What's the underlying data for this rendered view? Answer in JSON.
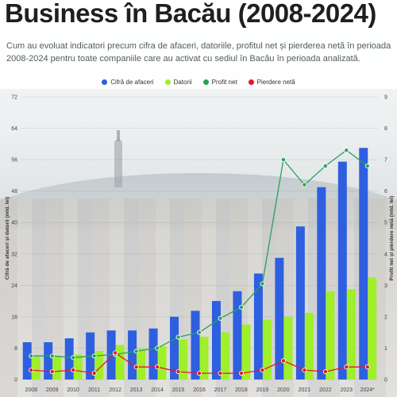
{
  "header": {
    "title": "Business în Bacău (2008-2024)",
    "subtitle": "Cum au evoluat indicatori precum cifra de afaceri, datoriile, profitul net și pierderea netă în perioada 2008-2024 pentru toate companiile care au activat cu sediul în Bacău în perioada analizată."
  },
  "colors": {
    "cifra_de_afaceri": "#2d5fe0",
    "datorii": "#9fef2a",
    "profit_net": "#2aa05a",
    "pierdere_neta": "#e31b23"
  },
  "chart_data": {
    "type": "bar",
    "title": "Business în Bacău (2008-2024)",
    "categories": [
      "2008",
      "2009",
      "2010",
      "2011",
      "2012",
      "2013",
      "2014",
      "2015",
      "2016",
      "2017",
      "2018",
      "2019",
      "2020",
      "2021",
      "2022",
      "2023",
      "2024*"
    ],
    "ylabel": "Cifră de afaceri și datorii (mld. lei)",
    "y2label": "Profit net și pierdere netă (mld. lei)",
    "ylim": [
      0,
      72
    ],
    "yticks": [
      0,
      8,
      16,
      24,
      32,
      40,
      48,
      56,
      64,
      72
    ],
    "y2lim": [
      0,
      9
    ],
    "y2ticks": [
      0,
      1,
      2,
      3,
      4,
      5,
      6,
      7,
      8,
      9
    ],
    "grid": true,
    "legend_position": "top-center",
    "series": [
      {
        "name": "Cifră de afaceri",
        "type": "bar",
        "axis": "left",
        "values": [
          9.5,
          9.5,
          10.5,
          12,
          12.5,
          12.5,
          13,
          16,
          17.5,
          20,
          22.5,
          27,
          31,
          39,
          49,
          55.5,
          59
        ]
      },
      {
        "name": "Datorii",
        "type": "bar",
        "axis": "left",
        "values": [
          5.8,
          6,
          6.4,
          7.3,
          8.8,
          7.9,
          8.5,
          10.2,
          10.9,
          12,
          14,
          15.2,
          16,
          17,
          22.5,
          23,
          26
        ]
      },
      {
        "name": "Profit net",
        "type": "line",
        "axis": "right",
        "values": [
          0.75,
          0.75,
          0.7,
          0.75,
          0.8,
          0.9,
          1.0,
          1.35,
          1.5,
          1.95,
          2.3,
          3.05,
          7.0,
          6.2,
          6.8,
          7.3,
          6.8
        ]
      },
      {
        "name": "Pierdere netă",
        "type": "line",
        "axis": "right",
        "values": [
          0.3,
          0.25,
          0.3,
          0.2,
          0.85,
          0.4,
          0.4,
          0.25,
          0.2,
          0.2,
          0.2,
          0.3,
          0.6,
          0.3,
          0.25,
          0.4,
          0.4
        ]
      }
    ]
  }
}
